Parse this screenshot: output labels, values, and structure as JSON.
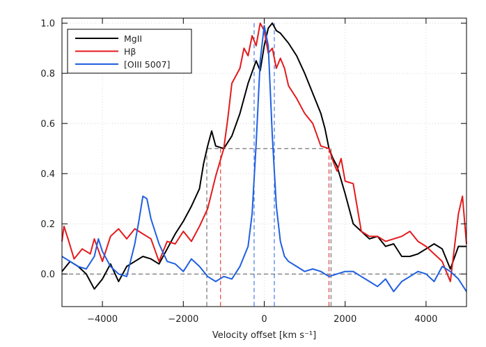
{
  "chart_data": {
    "type": "line",
    "title": "",
    "xlabel": "Velocity offset [km s⁻¹]",
    "ylabel": "",
    "xlim": [
      -5000,
      5000
    ],
    "ylim": [
      -0.13,
      1.02
    ],
    "x_ticks": [
      -4000,
      -2000,
      0,
      2000,
      4000
    ],
    "x_tick_labels": [
      "−4000",
      "−2000",
      "0",
      "2000",
      "4000"
    ],
    "y_ticks": [
      0.0,
      0.2,
      0.4,
      0.6,
      0.8,
      1.0
    ],
    "y_tick_labels": [
      "0.0",
      "0.2",
      "0.4",
      "0.6",
      "0.8",
      "1.0"
    ],
    "grid": "dotted",
    "legend_position": "top-left",
    "series": [
      {
        "name": "MgII",
        "color": "#000000",
        "x": [
          -5000,
          -4800,
          -4600,
          -4400,
          -4200,
          -4100,
          -4000,
          -3800,
          -3600,
          -3400,
          -3200,
          -3000,
          -2800,
          -2600,
          -2400,
          -2200,
          -2000,
          -1800,
          -1600,
          -1500,
          -1400,
          -1300,
          -1200,
          -1000,
          -800,
          -600,
          -400,
          -200,
          -100,
          0,
          100,
          200,
          300,
          400,
          600,
          800,
          1000,
          1200,
          1400,
          1500,
          1600,
          1700,
          1800,
          2000,
          2200,
          2400,
          2600,
          2800,
          3000,
          3200,
          3400,
          3600,
          3800,
          4000,
          4200,
          4400,
          4600,
          4800,
          5000
        ],
        "y": [
          0.01,
          0.05,
          0.03,
          0.0,
          -0.06,
          -0.04,
          -0.02,
          0.04,
          -0.03,
          0.03,
          0.05,
          0.07,
          0.06,
          0.04,
          0.1,
          0.16,
          0.21,
          0.27,
          0.34,
          0.44,
          0.51,
          0.57,
          0.51,
          0.5,
          0.55,
          0.64,
          0.76,
          0.85,
          0.81,
          0.91,
          0.98,
          1.0,
          0.97,
          0.96,
          0.92,
          0.87,
          0.8,
          0.72,
          0.64,
          0.58,
          0.5,
          0.46,
          0.43,
          0.32,
          0.2,
          0.17,
          0.14,
          0.15,
          0.11,
          0.12,
          0.07,
          0.07,
          0.08,
          0.1,
          0.12,
          0.1,
          0.02,
          0.11,
          0.11
        ]
      },
      {
        "name": "Hβ",
        "color": "#e31a1c",
        "x": [
          -5000,
          -4950,
          -4850,
          -4700,
          -4500,
          -4300,
          -4200,
          -4000,
          -3800,
          -3600,
          -3400,
          -3200,
          -3000,
          -2800,
          -2600,
          -2400,
          -2200,
          -2000,
          -1800,
          -1600,
          -1400,
          -1200,
          -1000,
          -900,
          -800,
          -600,
          -500,
          -400,
          -300,
          -200,
          -100,
          0,
          100,
          200,
          300,
          400,
          500,
          600,
          800,
          1000,
          1200,
          1400,
          1600,
          1700,
          1800,
          1900,
          2000,
          2200,
          2400,
          2600,
          2800,
          3000,
          3200,
          3400,
          3600,
          3800,
          4000,
          4200,
          4400,
          4500,
          4600,
          4800,
          4900,
          5000
        ],
        "y": [
          0.13,
          0.19,
          0.14,
          0.06,
          0.1,
          0.08,
          0.14,
          0.05,
          0.15,
          0.18,
          0.14,
          0.18,
          0.16,
          0.14,
          0.05,
          0.13,
          0.12,
          0.17,
          0.13,
          0.19,
          0.26,
          0.39,
          0.5,
          0.62,
          0.76,
          0.82,
          0.9,
          0.87,
          0.95,
          0.91,
          1.0,
          0.97,
          0.88,
          0.9,
          0.82,
          0.86,
          0.82,
          0.75,
          0.7,
          0.64,
          0.6,
          0.51,
          0.5,
          0.45,
          0.41,
          0.46,
          0.37,
          0.36,
          0.17,
          0.15,
          0.15,
          0.13,
          0.14,
          0.15,
          0.17,
          0.13,
          0.11,
          0.08,
          0.05,
          0.01,
          -0.03,
          0.24,
          0.31,
          0.12
        ]
      },
      {
        "name": "[OIII 5007]",
        "color": "#1f5fe0",
        "x": [
          -5000,
          -4800,
          -4600,
          -4400,
          -4200,
          -4100,
          -4000,
          -3800,
          -3600,
          -3400,
          -3200,
          -3100,
          -3000,
          -2900,
          -2800,
          -2600,
          -2400,
          -2200,
          -2000,
          -1800,
          -1600,
          -1400,
          -1200,
          -1000,
          -800,
          -600,
          -400,
          -300,
          -200,
          -100,
          0,
          100,
          200,
          300,
          400,
          500,
          600,
          800,
          1000,
          1200,
          1400,
          1600,
          1800,
          2000,
          2200,
          2400,
          2600,
          2800,
          3000,
          3200,
          3400,
          3600,
          3800,
          4000,
          4200,
          4400,
          4600,
          4800,
          5000
        ],
        "y": [
          0.07,
          0.05,
          0.03,
          0.02,
          0.07,
          0.14,
          0.09,
          0.03,
          0.0,
          -0.01,
          0.12,
          0.21,
          0.31,
          0.3,
          0.22,
          0.12,
          0.05,
          0.04,
          0.01,
          0.06,
          0.03,
          -0.01,
          -0.03,
          -0.01,
          -0.02,
          0.03,
          0.11,
          0.24,
          0.52,
          0.85,
          0.99,
          0.91,
          0.55,
          0.27,
          0.13,
          0.07,
          0.05,
          0.03,
          0.01,
          0.02,
          0.01,
          -0.01,
          0.0,
          0.01,
          0.01,
          -0.01,
          -0.03,
          -0.05,
          -0.02,
          -0.07,
          -0.03,
          -0.01,
          0.01,
          0.0,
          -0.03,
          0.03,
          0.01,
          -0.02,
          -0.07
        ]
      }
    ],
    "reference_lines": {
      "zero_level": 0,
      "half_max_level": 0.5,
      "half_max_x_range": [
        -1400,
        1650
      ],
      "fwhm_markers": [
        {
          "series": "MgII",
          "x": [
            -1420,
            1650
          ]
        },
        {
          "series": "Hβ",
          "x": [
            -1080,
            1600
          ]
        },
        {
          "series": "[OIII 5007]",
          "x": [
            -250,
            250
          ]
        }
      ]
    }
  }
}
